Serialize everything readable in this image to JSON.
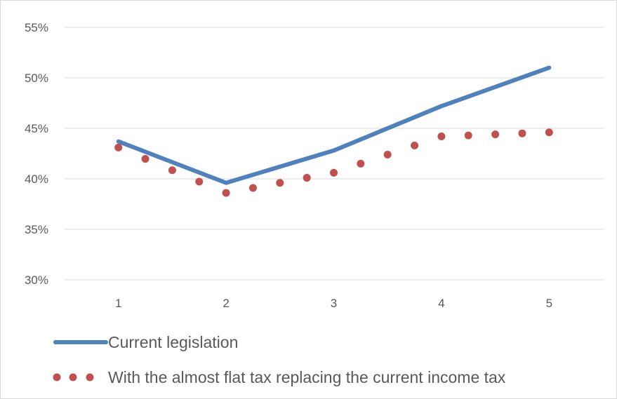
{
  "chart_data": {
    "type": "line",
    "title": "",
    "xlabel": "",
    "ylabel": "",
    "x_ticks": [
      "1",
      "2",
      "3",
      "4",
      "5"
    ],
    "xlim": [
      0.5,
      5.5
    ],
    "ylim": [
      0.3,
      0.55
    ],
    "y_ticks": [
      0.3,
      0.35,
      0.4,
      0.45,
      0.5,
      0.55
    ],
    "y_tick_labels": [
      "30%",
      "35%",
      "40%",
      "45%",
      "50%",
      "55%"
    ],
    "grid": "horizontal",
    "legend_position": "bottom",
    "series": [
      {
        "name": "Current legislation",
        "style": "solid",
        "color": "#4f81bd",
        "x": [
          1,
          2,
          3,
          4,
          5
        ],
        "y": [
          0.437,
          0.396,
          0.428,
          0.472,
          0.51
        ]
      },
      {
        "name": "With the almost flat tax replacing the current income tax",
        "style": "dotted",
        "color": "#c0504d",
        "x": [
          1,
          2,
          3,
          4,
          5
        ],
        "y": [
          0.431,
          0.386,
          0.406,
          0.442,
          0.446
        ]
      }
    ]
  }
}
